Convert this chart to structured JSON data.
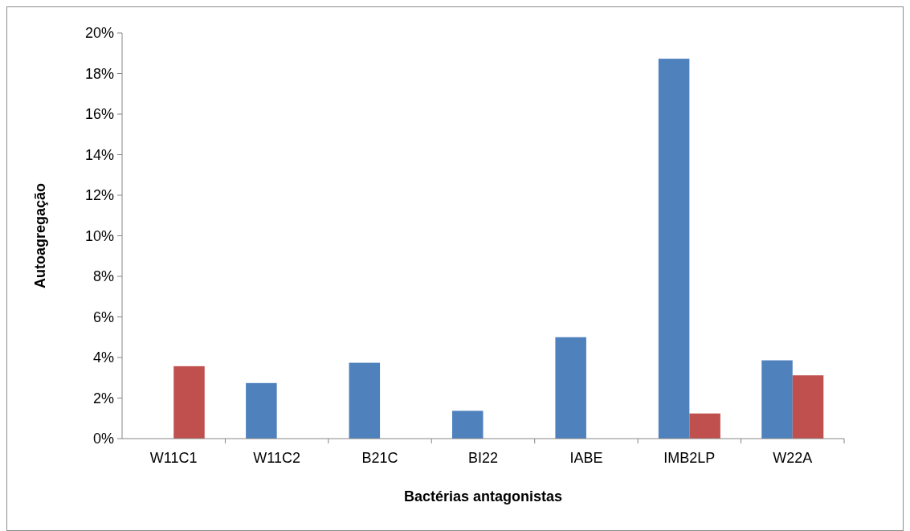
{
  "chart_data": {
    "type": "bar",
    "xlabel": "Bactérias antagonistas",
    "ylabel": "Autoagregação",
    "categories": [
      "W11C1",
      "W11C2",
      "B21C",
      "BI22",
      "IABE",
      "IMB2LP",
      "W22A"
    ],
    "series": [
      {
        "color": "#4f81bd",
        "values": [
          0,
          2.74,
          3.74,
          1.37,
          5.0,
          18.73,
          3.86
        ]
      },
      {
        "color": "#c0504d",
        "values": [
          3.57,
          0,
          0,
          0,
          0,
          1.24,
          3.12
        ]
      }
    ],
    "ylim": [
      0,
      20
    ],
    "yticks": [
      {
        "value": 0,
        "label": "0%"
      },
      {
        "value": 2,
        "label": "2%"
      },
      {
        "value": 4,
        "label": "4%"
      },
      {
        "value": 6,
        "label": "6%"
      },
      {
        "value": 8,
        "label": "8%"
      },
      {
        "value": 10,
        "label": "10%"
      },
      {
        "value": 12,
        "label": "12%"
      },
      {
        "value": 14,
        "label": "14%"
      },
      {
        "value": 16,
        "label": "16%"
      },
      {
        "value": 18,
        "label": "18%"
      },
      {
        "value": 20,
        "label": "20%"
      }
    ],
    "grid": false
  }
}
